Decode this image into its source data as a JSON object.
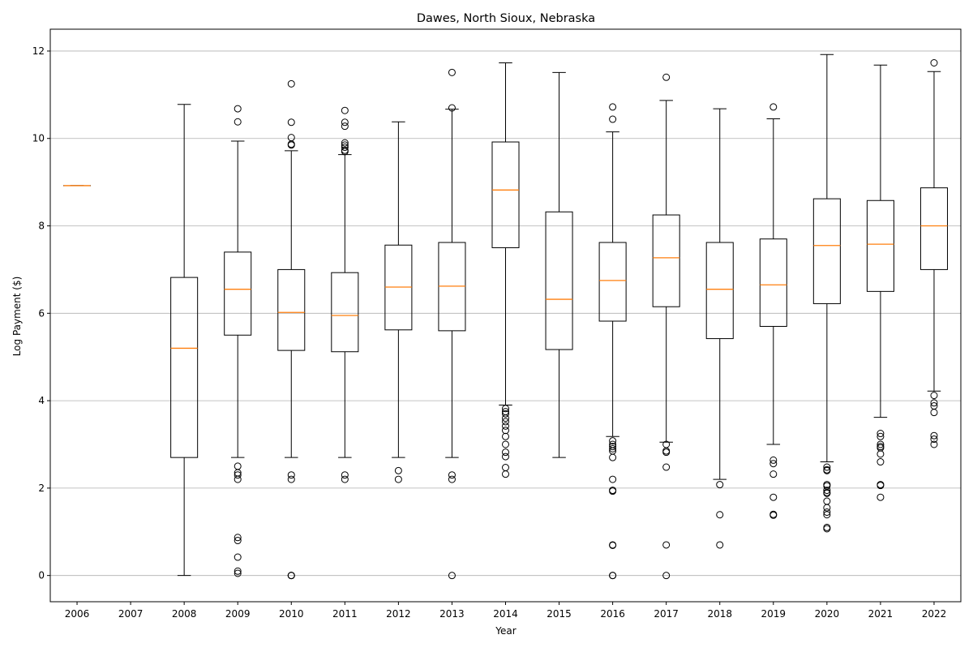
{
  "chart_data": {
    "type": "boxplot",
    "title": "Dawes, North Sioux, Nebraska",
    "xlabel": "Year",
    "ylabel": "Log Payment ($)",
    "ylim": [
      -0.6,
      12.5
    ],
    "yticks": [
      0,
      2,
      4,
      6,
      8,
      10,
      12
    ],
    "grid": "y",
    "colors": {
      "box": "#000000",
      "median": "#ff7f0e",
      "grid": "#b0b0b0"
    },
    "categories": [
      "2006",
      "2007",
      "2008",
      "2009",
      "2010",
      "2011",
      "2012",
      "2013",
      "2014",
      "2015",
      "2016",
      "2017",
      "2018",
      "2019",
      "2020",
      "2021",
      "2022"
    ],
    "boxes": [
      {
        "year": "2006",
        "whislo": 8.92,
        "q1": 8.92,
        "med": 8.92,
        "q3": 8.92,
        "whishi": 8.92,
        "fliers": []
      },
      {
        "year": "2007"
      },
      {
        "year": "2008",
        "whislo": 0.0,
        "q1": 2.7,
        "med": 5.2,
        "q3": 6.82,
        "whishi": 10.78,
        "fliers": []
      },
      {
        "year": "2009",
        "whislo": 2.7,
        "q1": 5.5,
        "med": 6.55,
        "q3": 7.4,
        "whishi": 9.94,
        "fliers": [
          10.68,
          10.38,
          2.5,
          2.35,
          2.3,
          2.2,
          0.87,
          0.8,
          0.42,
          0.1,
          0.05
        ]
      },
      {
        "year": "2010",
        "whislo": 2.7,
        "q1": 5.15,
        "med": 6.02,
        "q3": 7.0,
        "whishi": 9.72,
        "fliers": [
          11.25,
          10.37,
          10.02,
          9.87,
          9.85,
          2.3,
          2.2,
          0.0,
          0.0,
          0.0
        ]
      },
      {
        "year": "2011",
        "whislo": 2.7,
        "q1": 5.12,
        "med": 5.95,
        "q3": 6.93,
        "whishi": 9.63,
        "fliers": [
          10.64,
          10.37,
          10.28,
          9.9,
          9.85,
          9.8,
          9.73,
          9.7,
          2.3,
          2.2
        ]
      },
      {
        "year": "2012",
        "whislo": 2.7,
        "q1": 5.62,
        "med": 6.6,
        "q3": 7.56,
        "whishi": 10.38,
        "fliers": [
          2.4,
          2.2
        ]
      },
      {
        "year": "2013",
        "whislo": 2.7,
        "q1": 5.6,
        "med": 6.62,
        "q3": 7.62,
        "whishi": 10.67,
        "fliers": [
          11.51,
          10.7,
          2.3,
          2.2,
          0.0
        ]
      },
      {
        "year": "2014",
        "whislo": 3.9,
        "q1": 7.5,
        "med": 8.82,
        "q3": 9.92,
        "whishi": 11.73,
        "fliers": [
          3.82,
          3.75,
          3.7,
          3.6,
          3.52,
          3.42,
          3.32,
          3.18,
          3.0,
          2.82,
          2.72,
          2.47,
          2.32
        ]
      },
      {
        "year": "2015",
        "whislo": 2.7,
        "q1": 5.17,
        "med": 6.32,
        "q3": 8.32,
        "whishi": 11.51,
        "fliers": []
      },
      {
        "year": "2016",
        "whislo": 3.18,
        "q1": 5.82,
        "med": 6.75,
        "q3": 7.62,
        "whishi": 10.15,
        "fliers": [
          10.72,
          10.44,
          3.08,
          3.0,
          2.95,
          2.9,
          2.85,
          2.7,
          2.2,
          1.95,
          1.93,
          0.7,
          0.69,
          0.0,
          0.0
        ]
      },
      {
        "year": "2017",
        "whislo": 3.05,
        "q1": 6.15,
        "med": 7.27,
        "q3": 8.25,
        "whishi": 10.87,
        "fliers": [
          11.4,
          3.0,
          2.85,
          2.82,
          2.48,
          0.7,
          0.0
        ]
      },
      {
        "year": "2018",
        "whislo": 2.2,
        "q1": 5.42,
        "med": 6.55,
        "q3": 7.62,
        "whishi": 10.68,
        "fliers": [
          2.08,
          1.39,
          0.7
        ]
      },
      {
        "year": "2019",
        "whislo": 3.0,
        "q1": 5.7,
        "med": 6.65,
        "q3": 7.7,
        "whishi": 10.45,
        "fliers": [
          10.72,
          2.64,
          2.56,
          2.32,
          1.79,
          1.4,
          1.38
        ]
      },
      {
        "year": "2020",
        "whislo": 2.6,
        "q1": 6.22,
        "med": 7.55,
        "q3": 8.62,
        "whishi": 11.92,
        "fliers": [
          2.48,
          2.42,
          2.4,
          2.08,
          2.05,
          1.95,
          1.9,
          1.88,
          1.7,
          1.55,
          1.45,
          1.39,
          1.1,
          1.07
        ]
      },
      {
        "year": "2021",
        "whislo": 3.62,
        "q1": 6.5,
        "med": 7.58,
        "q3": 8.58,
        "whishi": 11.68,
        "fliers": [
          3.25,
          3.18,
          3.0,
          2.95,
          2.92,
          2.78,
          2.6,
          2.08,
          2.06,
          1.79
        ]
      },
      {
        "year": "2022",
        "whislo": 4.22,
        "q1": 7.0,
        "med": 8.0,
        "q3": 8.87,
        "whishi": 11.53,
        "fliers": [
          11.73,
          4.12,
          3.95,
          3.88,
          3.73,
          3.2,
          3.12,
          3.0
        ]
      }
    ]
  }
}
